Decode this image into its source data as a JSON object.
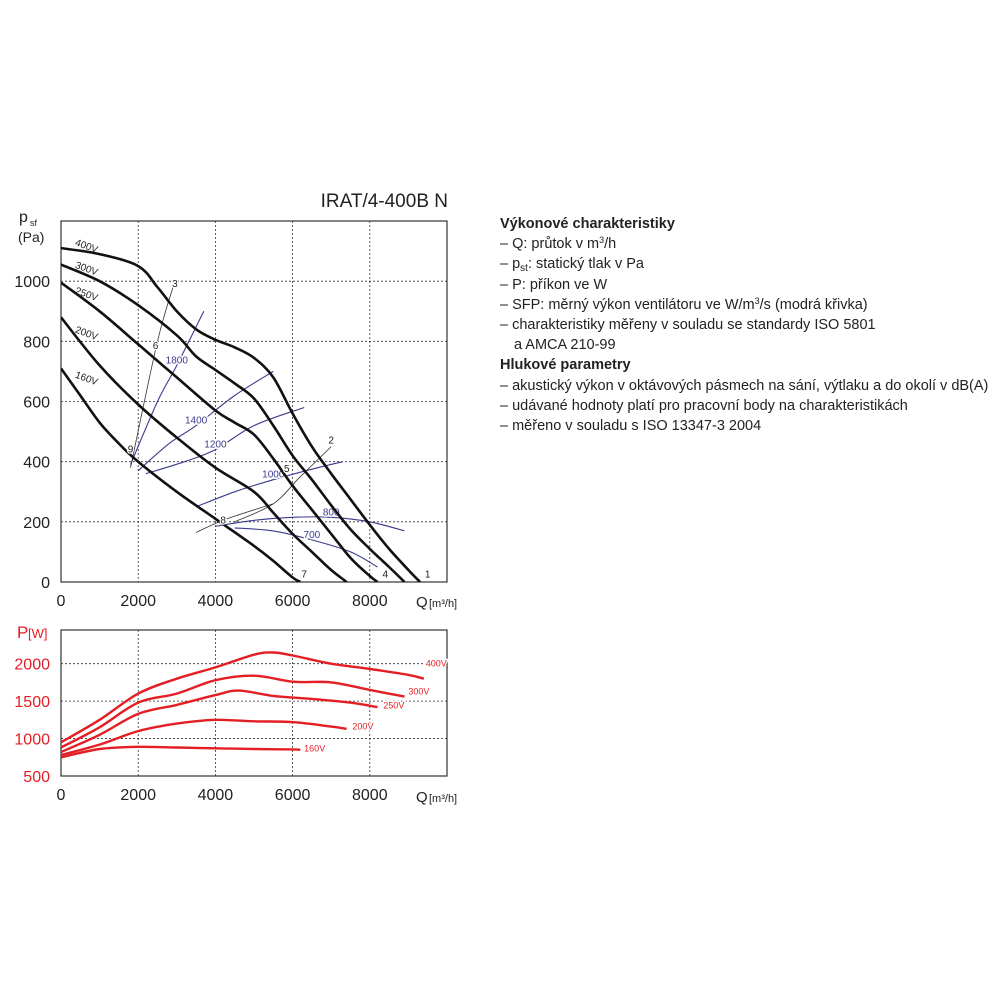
{
  "title": "IRAT/4-400B N",
  "chart_data": [
    {
      "type": "line",
      "name": "pressure",
      "ylabel_main": "p",
      "ylabel_sub": "sf",
      "yunit": "(Pa)",
      "xlabel_main": "Q",
      "xlabel_unit": "[m³/h]",
      "xlim": [
        0,
        10000
      ],
      "ylim": [
        0,
        1200
      ],
      "xticks": [
        0,
        2000,
        4000,
        6000,
        8000
      ],
      "yticks": [
        0,
        200,
        400,
        600,
        800,
        1000
      ],
      "grid": true,
      "series": [
        {
          "name": "400V",
          "points": [
            [
              0,
              1110
            ],
            [
              1000,
              1090
            ],
            [
              2000,
              1050
            ],
            [
              2500,
              980
            ],
            [
              3000,
              900
            ],
            [
              3500,
              840
            ],
            [
              4000,
              805
            ],
            [
              4500,
              780
            ],
            [
              5000,
              745
            ],
            [
              5500,
              680
            ],
            [
              6000,
              560
            ],
            [
              6500,
              450
            ],
            [
              7000,
              360
            ],
            [
              7500,
              275
            ],
            [
              8000,
              190
            ],
            [
              8500,
              110
            ],
            [
              9000,
              40
            ],
            [
              9300,
              0
            ]
          ]
        },
        {
          "name": "300V",
          "points": [
            [
              0,
              1055
            ],
            [
              1000,
              1000
            ],
            [
              2000,
              920
            ],
            [
              3000,
              820
            ],
            [
              3500,
              750
            ],
            [
              4000,
              705
            ],
            [
              4500,
              660
            ],
            [
              5000,
              610
            ],
            [
              5500,
              520
            ],
            [
              6000,
              420
            ],
            [
              6500,
              340
            ],
            [
              7000,
              255
            ],
            [
              7500,
              175
            ],
            [
              8000,
              110
            ],
            [
              8500,
              50
            ],
            [
              8900,
              0
            ]
          ]
        },
        {
          "name": "250V",
          "points": [
            [
              0,
              995
            ],
            [
              1000,
              900
            ],
            [
              2000,
              790
            ],
            [
              3000,
              680
            ],
            [
              4000,
              570
            ],
            [
              4500,
              530
            ],
            [
              5000,
              490
            ],
            [
              5500,
              410
            ],
            [
              6000,
              320
            ],
            [
              6500,
              240
            ],
            [
              7000,
              160
            ],
            [
              7500,
              80
            ],
            [
              8000,
              20
            ],
            [
              8200,
              0
            ]
          ]
        },
        {
          "name": "200V",
          "points": [
            [
              0,
              880
            ],
            [
              1000,
              720
            ],
            [
              2000,
              590
            ],
            [
              3000,
              480
            ],
            [
              4000,
              380
            ],
            [
              5000,
              300
            ],
            [
              5500,
              230
            ],
            [
              6000,
              160
            ],
            [
              6500,
              100
            ],
            [
              7000,
              40
            ],
            [
              7400,
              0
            ]
          ]
        },
        {
          "name": "160V",
          "points": [
            [
              0,
              710
            ],
            [
              500,
              620
            ],
            [
              1000,
              530
            ],
            [
              1500,
              460
            ],
            [
              2000,
              400
            ],
            [
              3000,
              300
            ],
            [
              4000,
              210
            ],
            [
              5000,
              120
            ],
            [
              5500,
              70
            ],
            [
              6000,
              15
            ],
            [
              6200,
              0
            ]
          ]
        }
      ],
      "sfp_curves": [
        {
          "label": "1800",
          "points": [
            [
              1800,
              390
            ],
            [
              2500,
              600
            ],
            [
              3000,
              720
            ],
            [
              3700,
              900
            ]
          ]
        },
        {
          "label": "1400",
          "points": [
            [
              2000,
              370
            ],
            [
              2800,
              460
            ],
            [
              3500,
              520
            ],
            [
              4500,
              620
            ],
            [
              5500,
              700
            ]
          ]
        },
        {
          "label": "1200",
          "points": [
            [
              2200,
              360
            ],
            [
              3200,
              400
            ],
            [
              4000,
              440
            ],
            [
              5000,
              520
            ],
            [
              6300,
              580
            ]
          ]
        },
        {
          "label": "1000",
          "points": [
            [
              3500,
              250
            ],
            [
              4500,
              300
            ],
            [
              5500,
              340
            ],
            [
              6500,
              375
            ],
            [
              7300,
              400
            ]
          ]
        },
        {
          "label": "800",
          "points": [
            [
              4000,
              185
            ],
            [
              5000,
              205
            ],
            [
              6000,
              215
            ],
            [
              7000,
              215
            ],
            [
              8000,
              200
            ],
            [
              8900,
              170
            ]
          ]
        },
        {
          "label": "700",
          "points": [
            [
              4500,
              180
            ],
            [
              5500,
              170
            ],
            [
              6500,
              140
            ],
            [
              7500,
              100
            ],
            [
              8200,
              50
            ]
          ]
        }
      ],
      "system_lines": [
        {
          "label": "3",
          "points": [
            [
              1800,
              380
            ],
            [
              2500,
              800
            ],
            [
              2950,
              1000
            ]
          ]
        },
        {
          "label": "2",
          "points": [
            [
              4500,
              200
            ],
            [
              5500,
              260
            ],
            [
              6200,
              350
            ],
            [
              7000,
              450
            ]
          ]
        },
        {
          "label": "8",
          "points": [
            [
              3500,
              165
            ],
            [
              4300,
              210
            ],
            [
              5500,
              260
            ]
          ]
        }
      ],
      "point_labels": [
        {
          "label": "1",
          "x": 9500,
          "y": 15
        },
        {
          "label": "2",
          "x": 7000,
          "y": 460
        },
        {
          "label": "3",
          "x": 2950,
          "y": 980
        },
        {
          "label": "4",
          "x": 8400,
          "y": 15
        },
        {
          "label": "5",
          "x": 5850,
          "y": 365
        },
        {
          "label": "6",
          "x": 2450,
          "y": 775
        },
        {
          "label": "7",
          "x": 6300,
          "y": 15
        },
        {
          "label": "8",
          "x": 4200,
          "y": 195
        },
        {
          "label": "9",
          "x": 1800,
          "y": 430
        }
      ],
      "series_labels": [
        {
          "label": "400V",
          "x": 350,
          "y": 1120
        },
        {
          "label": "300V",
          "x": 350,
          "y": 1045
        },
        {
          "label": "250V",
          "x": 350,
          "y": 960
        },
        {
          "label": "200V",
          "x": 350,
          "y": 830
        },
        {
          "label": "160V",
          "x": 350,
          "y": 680
        }
      ]
    },
    {
      "type": "line",
      "name": "power",
      "ylabel_main": "P",
      "yunit": "[W]",
      "xlabel_main": "Q",
      "xlabel_unit": "[m³/h]",
      "xlim": [
        0,
        10000
      ],
      "ylim": [
        500,
        2450
      ],
      "xticks": [
        0,
        2000,
        4000,
        6000,
        8000
      ],
      "yticks": [
        500,
        1000,
        1500,
        2000
      ],
      "grid": true,
      "series": [
        {
          "name": "400V",
          "points": [
            [
              0,
              950
            ],
            [
              1000,
              1250
            ],
            [
              2000,
              1600
            ],
            [
              3000,
              1800
            ],
            [
              4000,
              1950
            ],
            [
              5000,
              2120
            ],
            [
              5500,
              2150
            ],
            [
              6000,
              2110
            ],
            [
              7000,
              2000
            ],
            [
              8000,
              1930
            ],
            [
              9000,
              1850
            ],
            [
              9400,
              1800
            ]
          ]
        },
        {
          "name": "300V",
          "points": [
            [
              0,
              880
            ],
            [
              1000,
              1150
            ],
            [
              2000,
              1480
            ],
            [
              3000,
              1600
            ],
            [
              4000,
              1780
            ],
            [
              5000,
              1840
            ],
            [
              6000,
              1760
            ],
            [
              7000,
              1750
            ],
            [
              8000,
              1650
            ],
            [
              8900,
              1560
            ]
          ]
        },
        {
          "name": "250V",
          "points": [
            [
              0,
              820
            ],
            [
              1000,
              1050
            ],
            [
              2000,
              1330
            ],
            [
              3000,
              1450
            ],
            [
              4000,
              1580
            ],
            [
              4600,
              1640
            ],
            [
              5500,
              1570
            ],
            [
              6500,
              1530
            ],
            [
              7500,
              1480
            ],
            [
              8200,
              1420
            ]
          ]
        },
        {
          "name": "200V",
          "points": [
            [
              0,
              780
            ],
            [
              1000,
              920
            ],
            [
              2000,
              1100
            ],
            [
              3000,
              1200
            ],
            [
              4000,
              1250
            ],
            [
              5000,
              1230
            ],
            [
              6000,
              1220
            ],
            [
              7000,
              1160
            ],
            [
              7400,
              1130
            ]
          ]
        },
        {
          "name": "160V",
          "points": [
            [
              0,
              750
            ],
            [
              1000,
              860
            ],
            [
              2000,
              890
            ],
            [
              3000,
              880
            ],
            [
              4000,
              870
            ],
            [
              5000,
              860
            ],
            [
              6000,
              855
            ],
            [
              6200,
              850
            ]
          ]
        }
      ],
      "series_labels": [
        {
          "label": "400V",
          "x": 9450,
          "y": 1960
        },
        {
          "label": "300V",
          "x": 9000,
          "y": 1590
        },
        {
          "label": "250V",
          "x": 8350,
          "y": 1400
        },
        {
          "label": "200V",
          "x": 7550,
          "y": 1120
        },
        {
          "label": "160V",
          "x": 6300,
          "y": 830
        }
      ]
    }
  ],
  "legend": {
    "heading1": "Výkonové charakteristiky",
    "items1": [
      {
        "pre": "– Q: průtok v m",
        "sup": "3",
        "post": "/h"
      },
      {
        "pre": "– p",
        "sub": "st",
        "post": ": statický tlak v Pa"
      },
      {
        "pre": "– P: příkon ve W"
      },
      {
        "pre": "– SFP: měrný výkon ventilátoru ve W/m",
        "sup": "3",
        "post": "/s (modrá křivka)"
      },
      {
        "pre": "– charakteristiky měřeny v souladu se standardy ISO 5801"
      },
      {
        "pre": "a AMCA 210-99",
        "indent": true
      }
    ],
    "heading2": "Hlukové parametry",
    "items2": [
      {
        "pre": "– akustický výkon v oktávových pásmech na sání, výtlaku a do okolí v dB(A)"
      },
      {
        "pre": "– udávané hodnoty platí pro pracovní body na charakteristikách"
      },
      {
        "pre": "– měřeno v souladu s ISO 13347-3 2004"
      }
    ]
  },
  "colors": {
    "pressure_curve": "#111111",
    "sfp_curve": "#3b3b8f",
    "power_curve": "#e31e24",
    "grid": "#333333",
    "text": "#222222"
  }
}
